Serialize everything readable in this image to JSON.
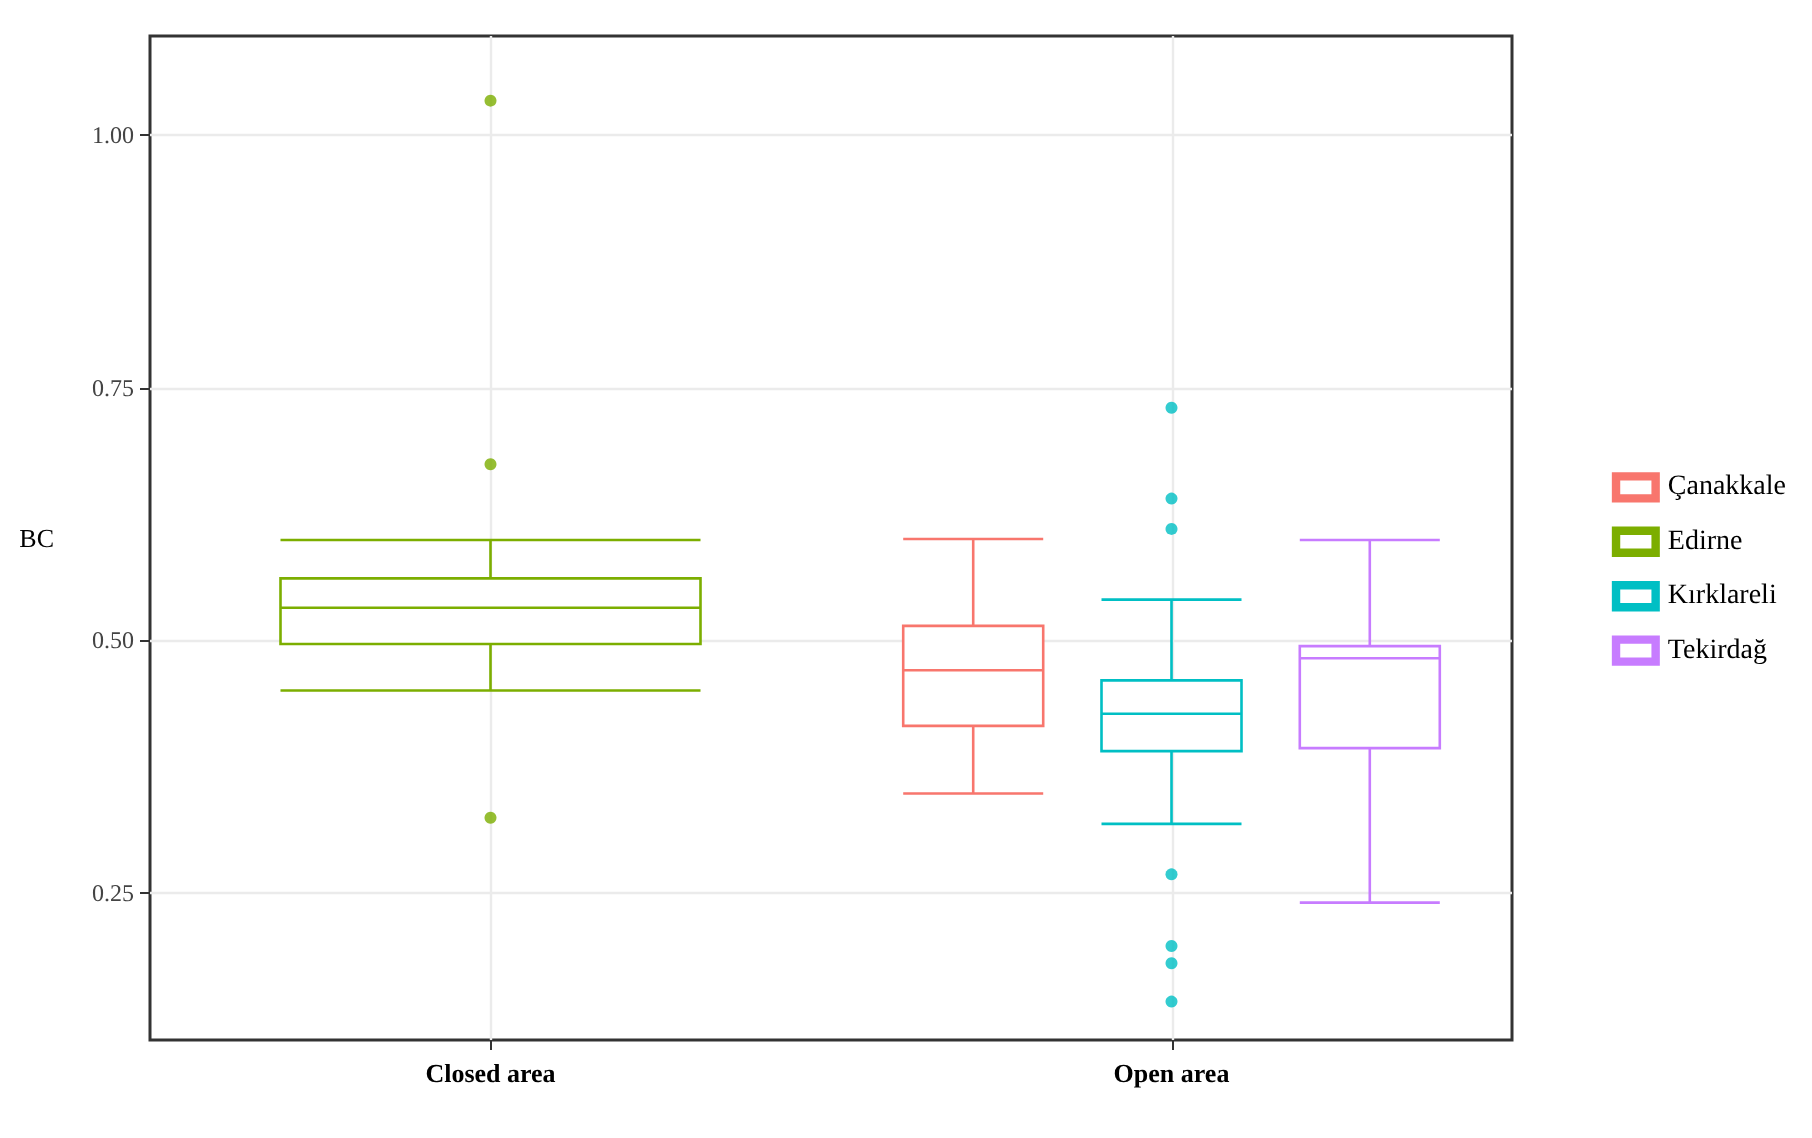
{
  "chart_data": {
    "type": "box",
    "ylabel": "BC",
    "categories": [
      "Closed area",
      "Open area"
    ],
    "ylim": [
      0.104,
      1.098
    ],
    "yticks": [
      0.25,
      {
        "value": 0.5,
        "label": "0.50"
      },
      0.75,
      {
        "value": 1,
        "label": "1.00"
      }
    ],
    "grid": true,
    "legend": "right",
    "series": [
      {
        "name": "Çanakkale",
        "color": "#f8766d",
        "boxes": [
          null,
          {
            "low": 0.348,
            "q1": 0.415,
            "median": 0.47,
            "q3": 0.514,
            "high": 0.6
          }
        ]
      },
      {
        "name": "Edirne",
        "color": "#7cae00",
        "boxes": [
          {
            "low": 0.45,
            "q1": 0.496,
            "median": 0.532,
            "q3": 0.561,
            "high": 0.599,
            "outliers": [
              1.034,
              0.674,
              0.324
            ]
          },
          null
        ]
      },
      {
        "name": "Kırklareli",
        "color": "#00bfc4",
        "boxes": [
          null,
          {
            "low": 0.318,
            "q1": 0.39,
            "median": 0.427,
            "q3": 0.46,
            "high": 0.54,
            "outliers": [
              0.73,
              0.64,
              0.61,
              0.268,
              0.197,
              0.18,
              0.142
            ]
          }
        ]
      },
      {
        "name": "Tekirdağ",
        "color": "#c77cff",
        "boxes": [
          null,
          {
            "low": 0.24,
            "q1": 0.393,
            "median": 0.482,
            "q3": 0.494,
            "high": 0.599
          }
        ]
      }
    ]
  }
}
